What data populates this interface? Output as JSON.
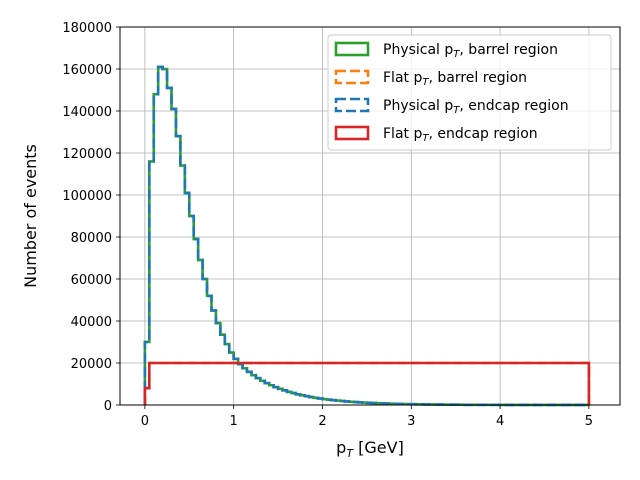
{
  "chart_data": {
    "type": "histogram-step",
    "xlabel": "p",
    "xlabel_sub": "T",
    "xlabel_suffix": " [GeV]",
    "ylabel": "Number of events",
    "xlim": [
      -0.28,
      5.35
    ],
    "ylim": [
      0,
      180000
    ],
    "xticks": [
      0,
      1,
      2,
      3,
      4,
      5
    ],
    "yticks": [
      0,
      20000,
      40000,
      60000,
      80000,
      100000,
      120000,
      140000,
      160000,
      180000
    ],
    "grid": true,
    "legend_position": "top-right",
    "bin_width": 0.05,
    "series": [
      {
        "name": "physical-barrel",
        "label_main": "Physical p",
        "label_sub": "T",
        "label_rest": ", barrel region",
        "color": "#2ca02c",
        "dashed": false,
        "x_start": 0.0,
        "values": [
          30000,
          116000,
          148000,
          161000,
          160000,
          151000,
          141000,
          128000,
          114000,
          101000,
          90000,
          79000,
          69000,
          60000,
          52000,
          45000,
          39000,
          33500,
          29000,
          25000,
          22000,
          19500,
          17500,
          15800,
          14200,
          12800,
          11500,
          10400,
          9400,
          8500,
          7700,
          7000,
          6300,
          5700,
          5100,
          4600,
          4200,
          3800,
          3400,
          3100,
          2800,
          2550,
          2300,
          2100,
          1900,
          1700,
          1550,
          1400,
          1250,
          1150,
          1050,
          950,
          860,
          780,
          700,
          630,
          570,
          510,
          460,
          420,
          380,
          340,
          310,
          280,
          250,
          225,
          200,
          180,
          165,
          150,
          135,
          120,
          110,
          100,
          90,
          80,
          72,
          65,
          60,
          55,
          50,
          45,
          40,
          36,
          33,
          30,
          27,
          24,
          22,
          20,
          18,
          16,
          15,
          14,
          13,
          12,
          11,
          10,
          9,
          8
        ]
      },
      {
        "name": "flat-barrel",
        "label_main": "Flat p",
        "label_sub": "T",
        "label_rest": ", barrel region",
        "color": "#ff7f0e",
        "dashed": true,
        "x_start": 0.0,
        "values": [
          8000,
          20000,
          20000,
          20000,
          20000,
          20000,
          20000,
          20000,
          20000,
          20000,
          20000,
          20000,
          20000,
          20000,
          20000,
          20000,
          20000,
          20000,
          20000,
          20000,
          20000,
          20000,
          20000,
          20000,
          20000,
          20000,
          20000,
          20000,
          20000,
          20000,
          20000,
          20000,
          20000,
          20000,
          20000,
          20000,
          20000,
          20000,
          20000,
          20000,
          20000,
          20000,
          20000,
          20000,
          20000,
          20000,
          20000,
          20000,
          20000,
          20000,
          20000,
          20000,
          20000,
          20000,
          20000,
          20000,
          20000,
          20000,
          20000,
          20000,
          20000,
          20000,
          20000,
          20000,
          20000,
          20000,
          20000,
          20000,
          20000,
          20000,
          20000,
          20000,
          20000,
          20000,
          20000,
          20000,
          20000,
          20000,
          20000,
          20000,
          20000,
          20000,
          20000,
          20000,
          20000,
          20000,
          20000,
          20000,
          20000,
          20000,
          20000,
          20000,
          20000,
          20000,
          20000,
          20000,
          20000,
          20000,
          20000,
          20000
        ]
      },
      {
        "name": "physical-endcap",
        "label_main": "Physical p",
        "label_sub": "T",
        "label_rest": ", endcap region",
        "color": "#1f77b4",
        "dashed": true,
        "x_start": 0.0,
        "values": [
          30000,
          116000,
          148000,
          161000,
          160000,
          151000,
          141000,
          128000,
          114000,
          101000,
          90000,
          79000,
          69000,
          60000,
          52000,
          45000,
          39000,
          33500,
          29000,
          25000,
          22000,
          19500,
          17500,
          15800,
          14200,
          12800,
          11500,
          10400,
          9400,
          8500,
          7700,
          7000,
          6300,
          5700,
          5100,
          4600,
          4200,
          3800,
          3400,
          3100,
          2800,
          2550,
          2300,
          2100,
          1900,
          1700,
          1550,
          1400,
          1250,
          1150,
          1050,
          950,
          860,
          780,
          700,
          630,
          570,
          510,
          460,
          420,
          380,
          340,
          310,
          280,
          250,
          225,
          200,
          180,
          165,
          150,
          135,
          120,
          110,
          100,
          90,
          80,
          72,
          65,
          60,
          55,
          50,
          45,
          40,
          36,
          33,
          30,
          27,
          24,
          22,
          20,
          18,
          16,
          15,
          14,
          13,
          12,
          11,
          10,
          9,
          8
        ]
      },
      {
        "name": "flat-endcap",
        "label_main": "Flat p",
        "label_sub": "T",
        "label_rest": ", endcap region",
        "color": "#d62728",
        "dashed": false,
        "x_start": 0.0,
        "values": [
          8000,
          20000,
          20000,
          20000,
          20000,
          20000,
          20000,
          20000,
          20000,
          20000,
          20000,
          20000,
          20000,
          20000,
          20000,
          20000,
          20000,
          20000,
          20000,
          20000,
          20000,
          20000,
          20000,
          20000,
          20000,
          20000,
          20000,
          20000,
          20000,
          20000,
          20000,
          20000,
          20000,
          20000,
          20000,
          20000,
          20000,
          20000,
          20000,
          20000,
          20000,
          20000,
          20000,
          20000,
          20000,
          20000,
          20000,
          20000,
          20000,
          20000,
          20000,
          20000,
          20000,
          20000,
          20000,
          20000,
          20000,
          20000,
          20000,
          20000,
          20000,
          20000,
          20000,
          20000,
          20000,
          20000,
          20000,
          20000,
          20000,
          20000,
          20000,
          20000,
          20000,
          20000,
          20000,
          20000,
          20000,
          20000,
          20000,
          20000,
          20000,
          20000,
          20000,
          20000,
          20000,
          20000,
          20000,
          20000,
          20000,
          20000,
          20000,
          20000,
          20000,
          20000,
          20000,
          20000,
          20000,
          20000,
          20000,
          20000
        ]
      }
    ]
  }
}
